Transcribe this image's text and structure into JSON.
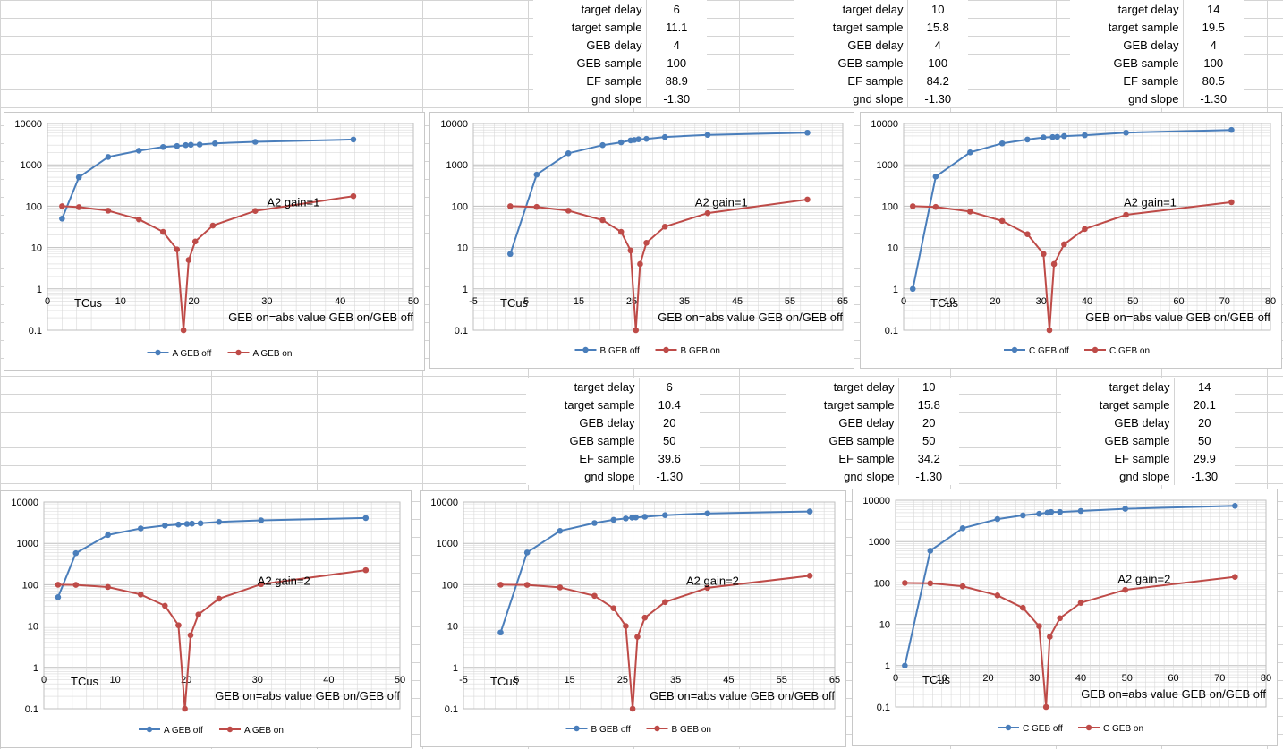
{
  "param_tables": [
    {
      "rows": [
        {
          "label": "target delay",
          "value": "6"
        },
        {
          "label": "target sample",
          "value": "11.1"
        },
        {
          "label": "GEB delay",
          "value": "4"
        },
        {
          "label": "GEB sample",
          "value": "100"
        },
        {
          "label": "EF sample",
          "value": "88.9"
        },
        {
          "label": "gnd slope",
          "value": "-1.30"
        }
      ]
    },
    {
      "rows": [
        {
          "label": "target delay",
          "value": "10"
        },
        {
          "label": "target sample",
          "value": "15.8"
        },
        {
          "label": "GEB delay",
          "value": "4"
        },
        {
          "label": "GEB sample",
          "value": "100"
        },
        {
          "label": "EF sample",
          "value": "84.2"
        },
        {
          "label": "gnd slope",
          "value": "-1.30"
        }
      ]
    },
    {
      "rows": [
        {
          "label": "target delay",
          "value": "14"
        },
        {
          "label": "target sample",
          "value": "19.5"
        },
        {
          "label": "GEB delay",
          "value": "4"
        },
        {
          "label": "GEB sample",
          "value": "100"
        },
        {
          "label": "EF sample",
          "value": "80.5"
        },
        {
          "label": "gnd slope",
          "value": "-1.30"
        }
      ]
    },
    {
      "rows": [
        {
          "label": "target delay",
          "value": "6"
        },
        {
          "label": "target sample",
          "value": "10.4"
        },
        {
          "label": "GEB delay",
          "value": "20"
        },
        {
          "label": "GEB sample",
          "value": "50"
        },
        {
          "label": "EF sample",
          "value": "39.6"
        },
        {
          "label": "gnd slope",
          "value": "-1.30"
        }
      ]
    },
    {
      "rows": [
        {
          "label": "target delay",
          "value": "10"
        },
        {
          "label": "target sample",
          "value": "15.8"
        },
        {
          "label": "GEB delay",
          "value": "20"
        },
        {
          "label": "GEB sample",
          "value": "50"
        },
        {
          "label": "EF sample",
          "value": "34.2"
        },
        {
          "label": "gnd slope",
          "value": "-1.30"
        }
      ]
    },
    {
      "rows": [
        {
          "label": "target delay",
          "value": "14"
        },
        {
          "label": "target sample",
          "value": "20.1"
        },
        {
          "label": "GEB delay",
          "value": "20"
        },
        {
          "label": "GEB sample",
          "value": "50"
        },
        {
          "label": "EF sample",
          "value": "29.9"
        },
        {
          "label": "gnd slope",
          "value": "-1.30"
        }
      ]
    }
  ],
  "colors": {
    "series_off": "#4a7ebb",
    "series_on": "#be4b48",
    "grid": "#d9d9d9",
    "gridline_major": "#bfbfbf"
  },
  "chart_data": [
    {
      "type": "scatter",
      "title": "",
      "xlim": [
        0,
        50
      ],
      "xticks": [
        "0",
        "10",
        "20",
        "30",
        "40",
        "50"
      ],
      "ylim": [
        0.1,
        10000
      ],
      "yticks": [
        "10000",
        "1000",
        "100",
        "10",
        "1",
        "0.1"
      ],
      "ylog": true,
      "annotation": "A2 gain=1",
      "xlabel": "TCus",
      "note": "GEB on=abs value GEB on/GEB off",
      "series": [
        {
          "name": "A  GEB off",
          "color": "#4a7ebb",
          "x": [
            2,
            4.3,
            8.3,
            12.5,
            15.8,
            17.7,
            18.9,
            19.6,
            20.8,
            22.9,
            28.4,
            41.8
          ],
          "y": [
            50,
            500,
            1550,
            2200,
            2700,
            2850,
            3000,
            3050,
            3100,
            3300,
            3600,
            4100
          ]
        },
        {
          "name": "A  GEB on",
          "color": "#be4b48",
          "x": [
            2,
            4.3,
            8.3,
            12.5,
            15.8,
            17.7,
            18.6,
            19.3,
            20.2,
            22.6,
            28.4,
            41.8
          ],
          "y": [
            100,
            95,
            78,
            48,
            24,
            9,
            0.1,
            5,
            14,
            34,
            77,
            175
          ]
        }
      ]
    },
    {
      "type": "scatter",
      "title": "",
      "xlim": [
        -5,
        65
      ],
      "xticks": [
        "-5",
        "5",
        "15",
        "25",
        "35",
        "45",
        "55",
        "65"
      ],
      "ylim": [
        0.1,
        10000
      ],
      "yticks": [
        "10000",
        "1000",
        "100",
        "10",
        "1",
        "0.1"
      ],
      "ylog": true,
      "annotation": "A2 gain=1",
      "xlabel": "TCus",
      "note": "GEB on=abs value GEB on/GEB off",
      "series": [
        {
          "name": "B  GEB off",
          "color": "#4a7ebb",
          "x": [
            2,
            7,
            13,
            19.5,
            23,
            24.8,
            25.5,
            26.3,
            27.8,
            31.3,
            39.4,
            58.3
          ],
          "y": [
            7,
            580,
            1900,
            3000,
            3500,
            3900,
            4000,
            4150,
            4250,
            4700,
            5300,
            6000
          ]
        },
        {
          "name": "B  GEB on",
          "color": "#be4b48",
          "x": [
            2,
            7,
            13,
            19.5,
            23,
            24.8,
            25.8,
            26.6,
            27.8,
            31.3,
            39.4,
            58.3
          ],
          "y": [
            100,
            96,
            78,
            46,
            24,
            8.5,
            0.1,
            4,
            13,
            32,
            68,
            145
          ]
        }
      ]
    },
    {
      "type": "scatter",
      "title": "",
      "xlim": [
        0,
        80
      ],
      "xticks": [
        "0",
        "10",
        "20",
        "30",
        "40",
        "50",
        "60",
        "70",
        "80"
      ],
      "ylim": [
        0.1,
        10000
      ],
      "yticks": [
        "10000",
        "1000",
        "100",
        "10",
        "1",
        "0.1"
      ],
      "ylog": true,
      "annotation": "A2 gain=1",
      "xlabel": "TCus",
      "note": "GEB on=abs value GEB on/GEB off",
      "series": [
        {
          "name": "C GEB off",
          "color": "#4a7ebb",
          "x": [
            2,
            7,
            14.5,
            21.5,
            27,
            30.5,
            32.5,
            33.5,
            35,
            39.5,
            48.5,
            71.5
          ],
          "y": [
            1,
            520,
            2000,
            3300,
            4100,
            4600,
            4700,
            4750,
            4950,
            5200,
            6000,
            7000
          ]
        },
        {
          "name": "C GEB on",
          "color": "#be4b48",
          "x": [
            2,
            7,
            14.5,
            21.5,
            27,
            30.5,
            31.8,
            32.8,
            35,
            39.5,
            48.5,
            71.5
          ],
          "y": [
            100,
            96,
            74,
            44,
            21,
            7,
            0.1,
            4,
            12,
            28,
            62,
            125
          ]
        }
      ]
    },
    {
      "type": "scatter",
      "title": "",
      "xlim": [
        0,
        50
      ],
      "xticks": [
        "0",
        "10",
        "20",
        "30",
        "40",
        "50"
      ],
      "ylim": [
        0.1,
        10000
      ],
      "yticks": [
        "10000",
        "1000",
        "100",
        "10",
        "1",
        "0.1"
      ],
      "ylog": true,
      "annotation": "A2 gain=2",
      "xlabel": "TCus",
      "note": "GEB on=abs value GEB on/GEB off",
      "series": [
        {
          "name": "A  GEB off",
          "color": "#4a7ebb",
          "x": [
            2,
            4.5,
            9,
            13.6,
            17,
            18.9,
            20.1,
            20.8,
            22,
            24.6,
            30.5,
            45.2
          ],
          "y": [
            50,
            580,
            1600,
            2300,
            2700,
            2850,
            2950,
            3000,
            3050,
            3300,
            3600,
            4100
          ]
        },
        {
          "name": "A  GEB on",
          "color": "#be4b48",
          "x": [
            2,
            4.5,
            9,
            13.6,
            17,
            18.9,
            19.8,
            20.6,
            21.7,
            24.6,
            30.5,
            45.2
          ],
          "y": [
            100,
            99,
            88,
            58,
            31,
            10.5,
            0.1,
            6,
            19,
            46,
            103,
            225
          ]
        }
      ]
    },
    {
      "type": "scatter",
      "title": "",
      "xlim": [
        -5,
        65
      ],
      "xticks": [
        "-5",
        "5",
        "15",
        "25",
        "35",
        "45",
        "55",
        "65"
      ],
      "ylim": [
        0.1,
        10000
      ],
      "yticks": [
        "10000",
        "1000",
        "100",
        "10",
        "1",
        "0.1"
      ],
      "ylog": true,
      "annotation": "A2 gain=2",
      "xlabel": "TCus",
      "note": "GEB on=abs value GEB on/GEB off",
      "series": [
        {
          "name": "B  GEB off",
          "color": "#4a7ebb",
          "x": [
            2,
            7,
            13.2,
            19.7,
            23.3,
            25.6,
            26.8,
            27.5,
            29.2,
            33,
            41,
            60.3
          ],
          "y": [
            7,
            600,
            2000,
            3100,
            3700,
            4000,
            4200,
            4250,
            4400,
            4800,
            5300,
            5900
          ]
        },
        {
          "name": "B  GEB on",
          "color": "#be4b48",
          "x": [
            2,
            7,
            13.2,
            19.7,
            23.3,
            25.6,
            26.9,
            27.8,
            29.2,
            33,
            41,
            60.3
          ],
          "y": [
            100,
            99,
            86,
            54,
            27,
            10,
            0.1,
            5.5,
            16,
            38,
            84,
            165
          ]
        }
      ]
    },
    {
      "type": "scatter",
      "title": "",
      "xlim": [
        0,
        80
      ],
      "xticks": [
        "0",
        "10",
        "20",
        "30",
        "40",
        "50",
        "60",
        "70",
        "80"
      ],
      "ylim": [
        0.1,
        10000
      ],
      "yticks": [
        "10000",
        "1000",
        "100",
        "10",
        "1",
        "0.1"
      ],
      "ylog": true,
      "annotation": "A2 gain=2",
      "xlabel": "TCus",
      "note": "GEB on=abs value GEB on/GEB off",
      "series": [
        {
          "name": "C GEB off",
          "color": "#4a7ebb",
          "x": [
            2,
            7.5,
            14.5,
            22,
            27.5,
            31,
            32.8,
            33.6,
            35.5,
            40,
            49.6,
            73.3
          ],
          "y": [
            1,
            600,
            2100,
            3500,
            4300,
            4700,
            5000,
            5200,
            5200,
            5500,
            6200,
            7300
          ]
        },
        {
          "name": "C GEB on",
          "color": "#be4b48",
          "x": [
            2,
            7.5,
            14.5,
            22,
            27.5,
            31,
            32.5,
            33.3,
            35.5,
            40,
            49.6,
            73.3
          ],
          "y": [
            100,
            98,
            83,
            50,
            25,
            9,
            0.1,
            5,
            14,
            33,
            68,
            140
          ]
        }
      ]
    }
  ]
}
